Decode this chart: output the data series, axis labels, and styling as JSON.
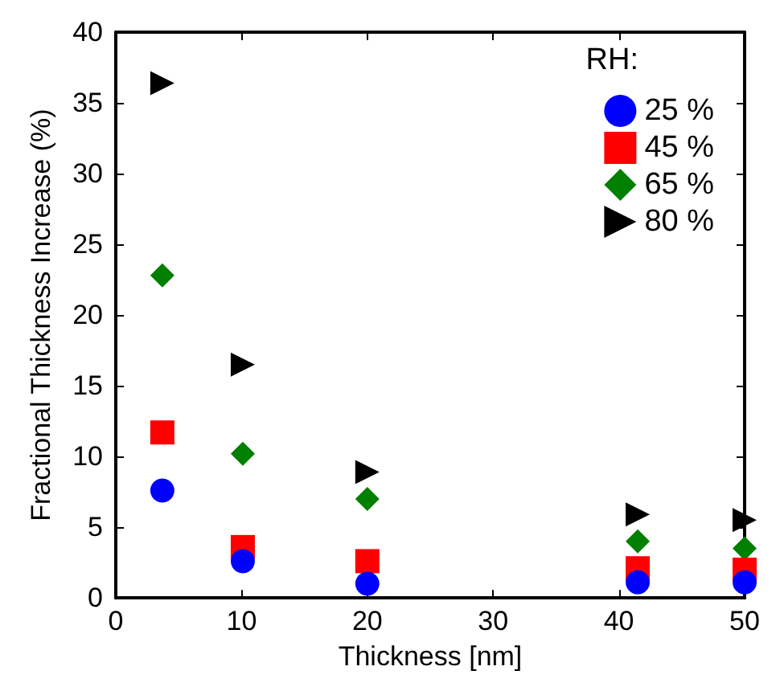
{
  "chart_data": {
    "type": "scatter",
    "xlabel": "Thickness [nm]",
    "ylabel": "Fractional Thickness Increase (%)",
    "legend_title": "RH:",
    "legend": "top right",
    "grid": false,
    "xlim": [
      0,
      50
    ],
    "xticks": [
      0,
      10,
      20,
      30,
      40,
      50
    ],
    "ylim": [
      0,
      40
    ],
    "yticks": [
      0,
      5,
      10,
      15,
      20,
      25,
      30,
      35,
      40
    ],
    "series": [
      {
        "name": "25 %",
        "color": "#0000ff",
        "marker": "circle",
        "x": [
          3.7,
          10.1,
          20,
          41.5,
          50
        ],
        "values": [
          7.6,
          2.6,
          1.0,
          1.1,
          1.1
        ]
      },
      {
        "name": "45 %",
        "color": "#ff0000",
        "marker": "square",
        "x": [
          3.7,
          10.1,
          20,
          41.5,
          50
        ],
        "values": [
          11.7,
          3.6,
          2.6,
          2.1,
          2.0
        ]
      },
      {
        "name": "65 %",
        "color": "#007f00",
        "marker": "diamond",
        "x": [
          3.7,
          10.1,
          20,
          41.5,
          50
        ],
        "values": [
          22.8,
          10.2,
          7.0,
          4.0,
          3.5
        ]
      },
      {
        "name": "80 %",
        "color": "#000000",
        "marker": "triangle",
        "x": [
          3.7,
          10.1,
          20,
          41.5,
          50
        ],
        "values": [
          36.4,
          16.5,
          8.9,
          5.9,
          5.5
        ]
      }
    ]
  }
}
